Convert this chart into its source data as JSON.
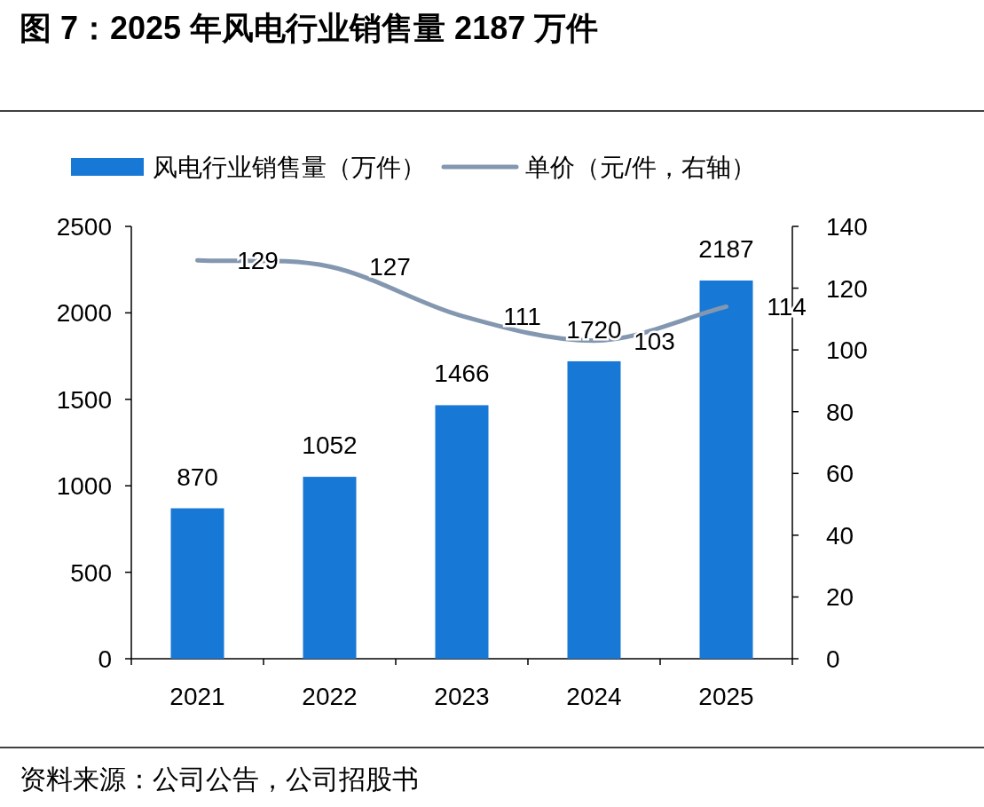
{
  "chart_data": {
    "type": "bar",
    "title": "图 7：2025 年风电行业销售量 2187 万件",
    "categories": [
      "2021",
      "2022",
      "2023",
      "2024",
      "2025"
    ],
    "series": [
      {
        "name": "风电行业销售量（万件）",
        "color": "#1878d6",
        "values": [
          870,
          1052,
          1466,
          1720,
          2187
        ]
      },
      {
        "name": "单价（元/件，右轴）",
        "type": "line",
        "axis": "y2",
        "color": "#8497b0",
        "values": [
          129,
          127,
          111,
          103,
          114
        ]
      }
    ],
    "ylim": [
      0,
      2500
    ],
    "yticks": [
      0,
      500,
      1000,
      1500,
      2000,
      2500
    ],
    "y2lim": [
      0,
      140
    ],
    "y2ticks": [
      0,
      20,
      40,
      60,
      80,
      100,
      120,
      140
    ],
    "data_labels": true,
    "legend": "top",
    "grid": false,
    "annotations": [
      "资料来源：公司公告，公司招股书"
    ]
  }
}
